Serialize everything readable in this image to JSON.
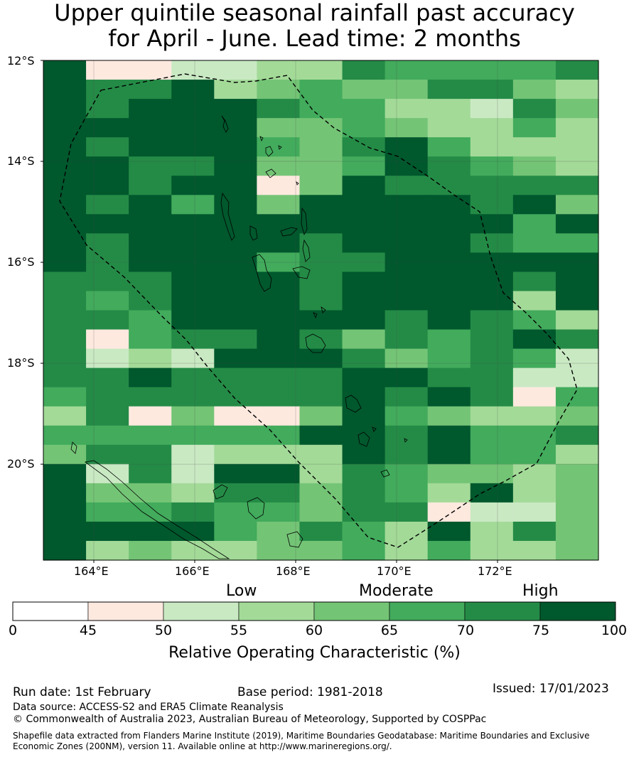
{
  "title": {
    "line1": "Upper quintile seasonal rainfall past accuracy",
    "line2": "for April - June. Lead time: 2 months"
  },
  "map": {
    "lon_range": [
      163,
      174
    ],
    "lat_range": [
      -21.9,
      -12
    ],
    "lat_ticks": [
      {
        "value": -12,
        "label": "12°S"
      },
      {
        "value": -14,
        "label": "14°S"
      },
      {
        "value": -16,
        "label": "16°S"
      },
      {
        "value": -18,
        "label": "18°S"
      },
      {
        "value": -20,
        "label": "20°S"
      }
    ],
    "lon_ticks": [
      {
        "value": 164,
        "label": "164°E"
      },
      {
        "value": 166,
        "label": "166°E"
      },
      {
        "value": 168,
        "label": "168°E"
      },
      {
        "value": 170,
        "label": "170°E"
      },
      {
        "value": 172,
        "label": "172°E"
      }
    ],
    "grid_classes": [
      "7112233655556",
      "7667345446643",
      "7677765533264",
      "7777744543353",
      "7677754675333",
      "7766744576543",
      "7767714766666",
      "7675747777674",
      "7777777777757",
      "7677776777655",
      "7677756677777",
      "6667776777767",
      "6567776777737",
      "6657777767653",
      "6156676465676",
      "6232777645652",
      "6676666776622",
      "5666666767615",
      "3614114754334",
      "5555557767556",
      "4662333767553",
      "7262773654434",
      "7443664653734",
      "7556554661224",
      "7777546537364",
      "7343344535334"
    ]
  },
  "colorbar": {
    "headers": [
      "Low",
      "Moderate",
      "High"
    ],
    "ticks": [
      "0",
      "45",
      "50",
      "55",
      "60",
      "65",
      "70",
      "75",
      "100"
    ],
    "colors": [
      "#ffffff",
      "#fee9df",
      "#c9e9c3",
      "#a3da98",
      "#74c476",
      "#42ab5c",
      "#248b46",
      "#00582d"
    ],
    "label": "Relative Operating Characteristic (%)"
  },
  "footer": {
    "run_date": "Run date: 1st February",
    "base_period": "Base period: 1981-2018",
    "issued": "Issued: 17/01/2023",
    "data_source": "Data source: ACCESS-S2 and ERA5 Climate Reanalysis",
    "copyright": "© Commonwealth of Australia 2023, Australian Bureau of Meteorology, Supported by COSPPac",
    "shapefile": "Shapefile data extracted from Flanders Marine Institute (2019), Maritime Boundaries Geodatabase: Maritime Boundaries and Exclusive Economic Zones (200NM), version 11. Available online at http://www.marineregions.org/."
  }
}
